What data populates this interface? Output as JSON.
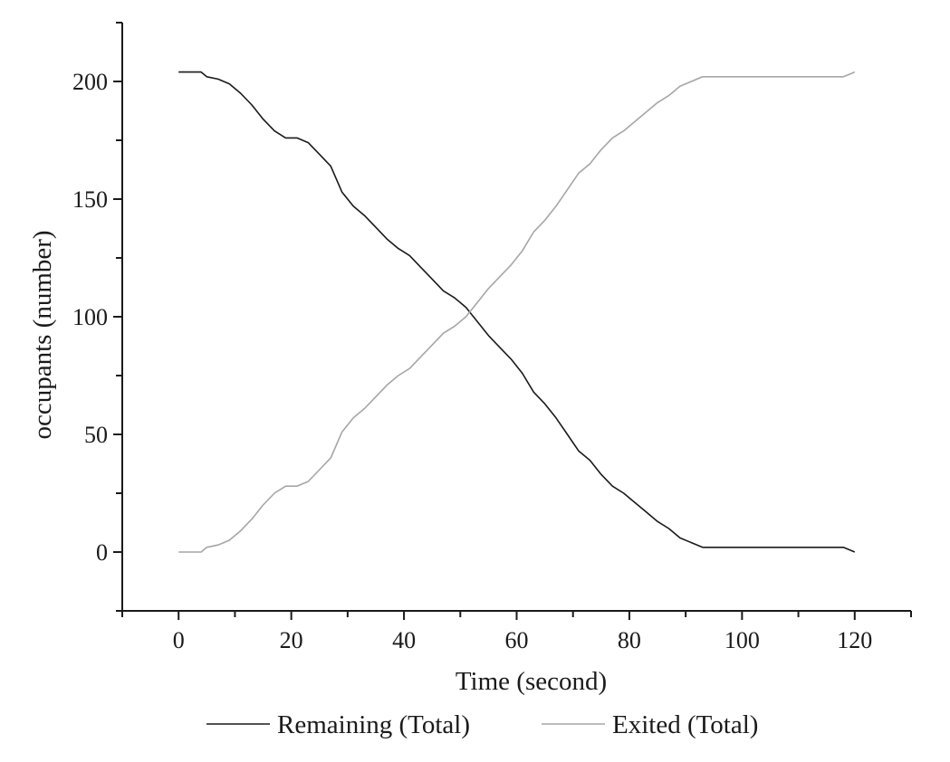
{
  "chart_data": {
    "type": "line",
    "title": "",
    "xlabel": "Time (second)",
    "ylabel": "occupants (number)",
    "xlim": [
      -10,
      130
    ],
    "ylim": [
      -25,
      225
    ],
    "xticks": [
      0,
      20,
      40,
      60,
      80,
      100,
      120
    ],
    "yticks": [
      0,
      50,
      100,
      150,
      200
    ],
    "grid": false,
    "legend_position": "bottom",
    "series": [
      {
        "name": "Remaining (Total)",
        "color": "#1a1a1a",
        "points": [
          [
            0,
            204
          ],
          [
            4,
            204
          ],
          [
            5,
            202
          ],
          [
            7,
            201
          ],
          [
            9,
            199
          ],
          [
            11,
            195
          ],
          [
            13,
            190
          ],
          [
            15,
            184
          ],
          [
            17,
            179
          ],
          [
            19,
            176
          ],
          [
            21,
            176
          ],
          [
            23,
            174
          ],
          [
            25,
            169
          ],
          [
            27,
            164
          ],
          [
            29,
            153
          ],
          [
            31,
            147
          ],
          [
            33,
            143
          ],
          [
            35,
            138
          ],
          [
            37,
            133
          ],
          [
            39,
            129
          ],
          [
            41,
            126
          ],
          [
            43,
            121
          ],
          [
            45,
            116
          ],
          [
            47,
            111
          ],
          [
            49,
            108
          ],
          [
            51,
            104
          ],
          [
            53,
            98
          ],
          [
            55,
            92
          ],
          [
            57,
            87
          ],
          [
            59,
            82
          ],
          [
            61,
            76
          ],
          [
            63,
            68
          ],
          [
            65,
            63
          ],
          [
            67,
            57
          ],
          [
            69,
            50
          ],
          [
            71,
            43
          ],
          [
            73,
            39
          ],
          [
            75,
            33
          ],
          [
            77,
            28
          ],
          [
            79,
            25
          ],
          [
            81,
            21
          ],
          [
            83,
            17
          ],
          [
            85,
            13
          ],
          [
            87,
            10
          ],
          [
            89,
            6
          ],
          [
            91,
            4
          ],
          [
            93,
            2
          ],
          [
            94,
            2
          ],
          [
            100,
            2
          ],
          [
            110,
            2
          ],
          [
            118,
            2
          ],
          [
            119,
            1
          ],
          [
            120,
            0
          ]
        ]
      },
      {
        "name": "Exited (Total)",
        "color": "#a6a6a6",
        "points": [
          [
            0,
            0
          ],
          [
            4,
            0
          ],
          [
            5,
            2
          ],
          [
            7,
            3
          ],
          [
            9,
            5
          ],
          [
            11,
            9
          ],
          [
            13,
            14
          ],
          [
            15,
            20
          ],
          [
            17,
            25
          ],
          [
            19,
            28
          ],
          [
            21,
            28
          ],
          [
            23,
            30
          ],
          [
            25,
            35
          ],
          [
            27,
            40
          ],
          [
            29,
            51
          ],
          [
            31,
            57
          ],
          [
            33,
            61
          ],
          [
            35,
            66
          ],
          [
            37,
            71
          ],
          [
            39,
            75
          ],
          [
            41,
            78
          ],
          [
            43,
            83
          ],
          [
            45,
            88
          ],
          [
            47,
            93
          ],
          [
            49,
            96
          ],
          [
            51,
            100
          ],
          [
            53,
            106
          ],
          [
            55,
            112
          ],
          [
            57,
            117
          ],
          [
            59,
            122
          ],
          [
            61,
            128
          ],
          [
            63,
            136
          ],
          [
            65,
            141
          ],
          [
            67,
            147
          ],
          [
            69,
            154
          ],
          [
            71,
            161
          ],
          [
            73,
            165
          ],
          [
            75,
            171
          ],
          [
            77,
            176
          ],
          [
            79,
            179
          ],
          [
            81,
            183
          ],
          [
            83,
            187
          ],
          [
            85,
            191
          ],
          [
            87,
            194
          ],
          [
            89,
            198
          ],
          [
            91,
            200
          ],
          [
            93,
            202
          ],
          [
            94,
            202
          ],
          [
            100,
            202
          ],
          [
            110,
            202
          ],
          [
            118,
            202
          ],
          [
            119,
            203
          ],
          [
            120,
            204
          ]
        ]
      }
    ]
  }
}
